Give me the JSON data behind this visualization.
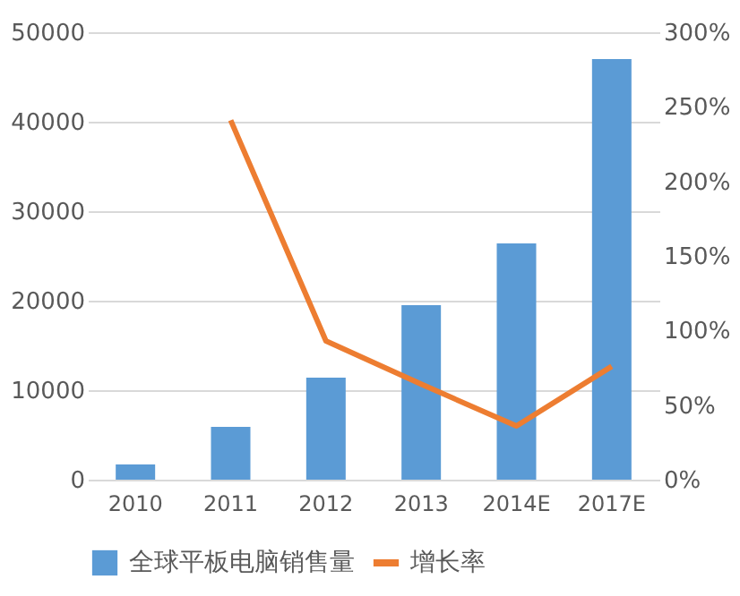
{
  "chart_data": {
    "type": "bar",
    "categories": [
      "2010",
      "2011",
      "2012",
      "2013",
      "2014E",
      "2017E"
    ],
    "series": [
      {
        "name": "全球平板电脑销售量",
        "color": "#5b9bd5",
        "values": [
          1700,
          5900,
          11400,
          19500,
          26400,
          47000
        ]
      },
      {
        "name": "增长率",
        "type": "line",
        "axis": "y2",
        "color": "#ed7d31",
        "values": [
          null,
          241,
          93,
          64,
          36,
          76
        ]
      }
    ],
    "ylim": [
      0,
      50000
    ],
    "yticks": [
      0,
      10000,
      20000,
      30000,
      40000,
      50000
    ],
    "y2lim": [
      0,
      300
    ],
    "y2ticks": [
      {
        "value": 0,
        "label": "0%"
      },
      {
        "value": 50,
        "label": "50%"
      },
      {
        "value": 100,
        "label": "100%"
      },
      {
        "value": 150,
        "label": "150%"
      },
      {
        "value": 200,
        "label": "200%"
      },
      {
        "value": 250,
        "label": "250%"
      },
      {
        "value": 300,
        "label": "300%"
      }
    ],
    "grid": "y",
    "legend": "bottom"
  }
}
